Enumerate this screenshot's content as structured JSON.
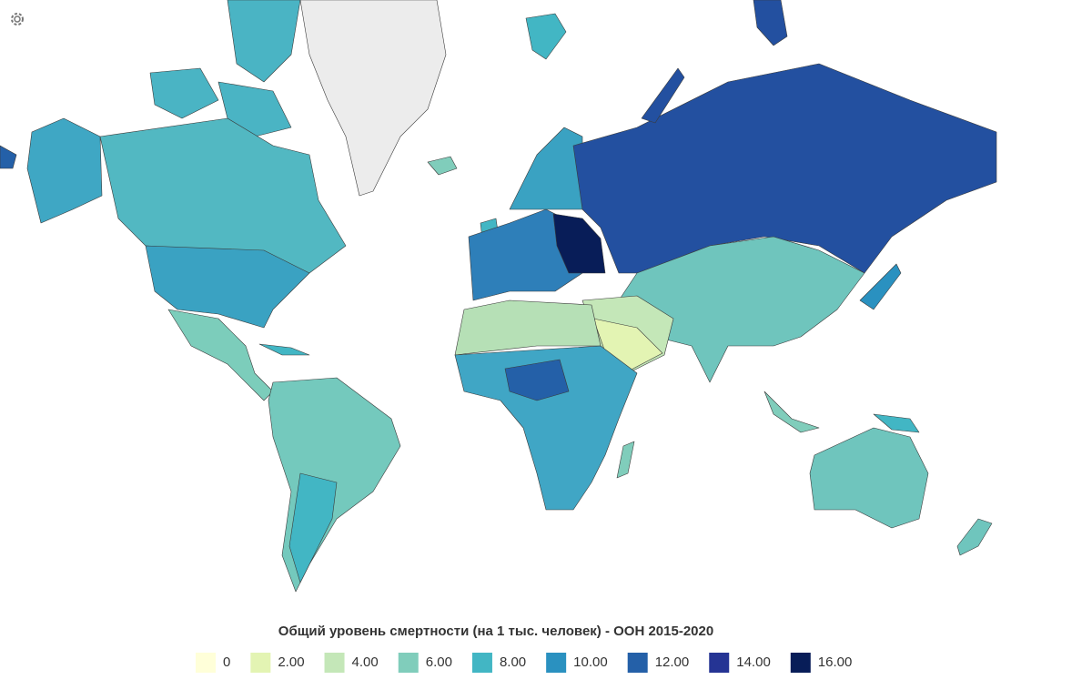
{
  "map": {
    "legend": {
      "title": "Общий уровень смертности (на 1 тыс. человек) - ООН 2015-2020",
      "items": [
        {
          "label": "0",
          "color": "#ffffd9"
        },
        {
          "label": "2.00",
          "color": "#e3f4b3"
        },
        {
          "label": "4.00",
          "color": "#c4e7b8"
        },
        {
          "label": "6.00",
          "color": "#80cdbb"
        },
        {
          "label": "8.00",
          "color": "#42b6c4"
        },
        {
          "label": "10.00",
          "color": "#2a91c0"
        },
        {
          "label": "12.00",
          "color": "#2460a8"
        },
        {
          "label": "14.00",
          "color": "#253494"
        },
        {
          "label": "16.00",
          "color": "#081d58"
        }
      ]
    }
  }
}
